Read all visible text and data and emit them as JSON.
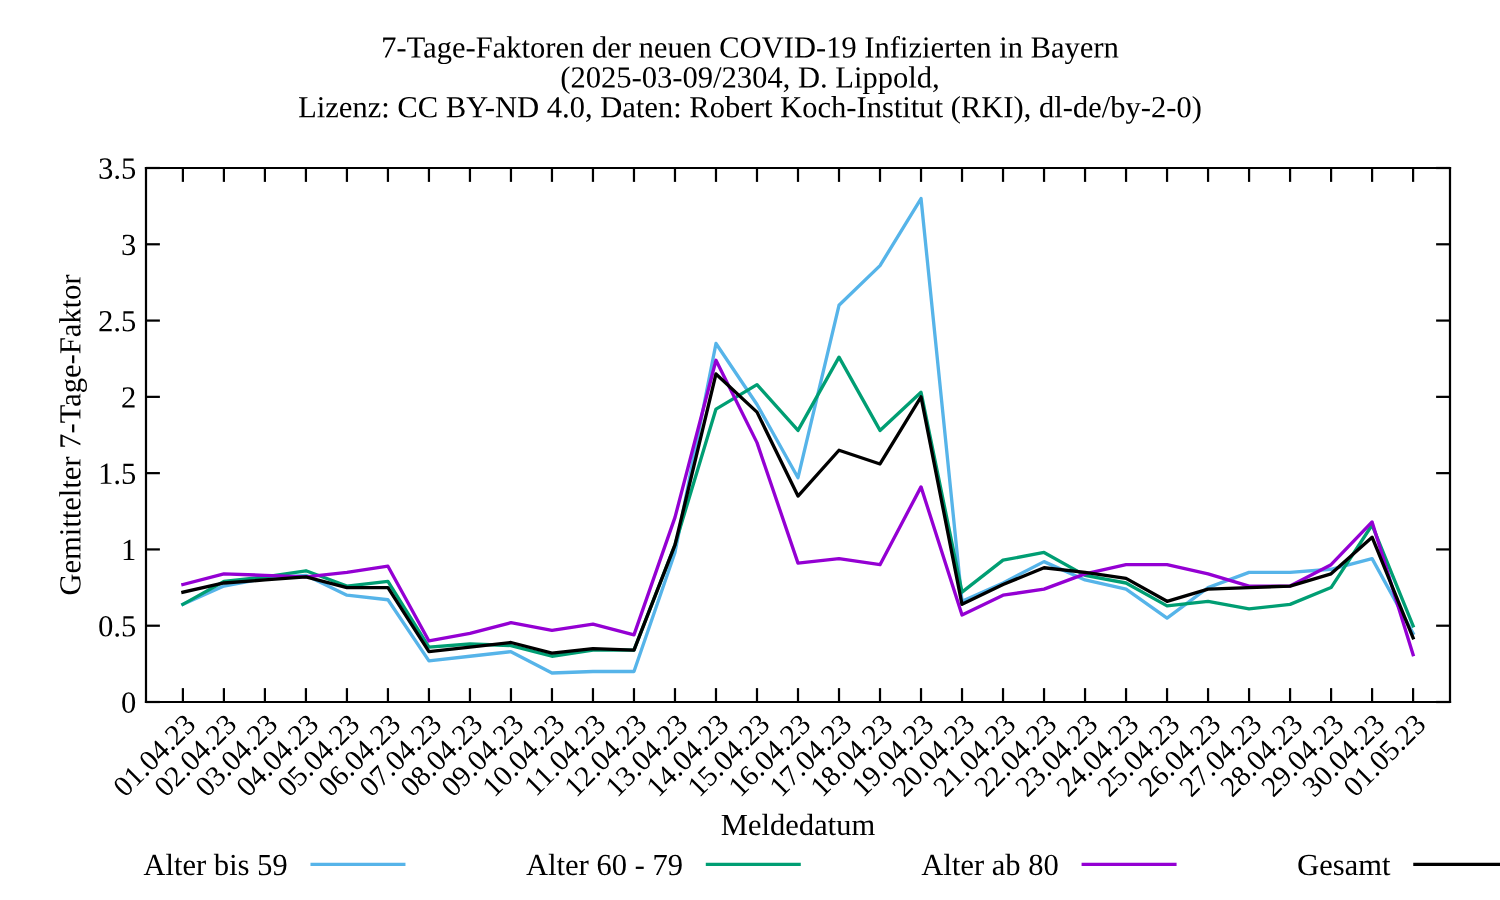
{
  "chart_data": {
    "type": "line",
    "title": "7-Tage-Faktoren der neuen COVID-19 Infizierten in Bayern",
    "subtitle": "(2025-03-09/2304, D. Lippold,\nLizenz: CC BY-ND 4.0, Daten: Robert Koch-Institut (RKI), dl-de/by-2-0)",
    "xlabel": "Meldedatum",
    "ylabel": "Gemittelter 7-Tage-Faktor",
    "categories": [
      "01.04.23",
      "02.04.23",
      "03.04.23",
      "04.04.23",
      "05.04.23",
      "06.04.23",
      "07.04.23",
      "08.04.23",
      "09.04.23",
      "10.04.23",
      "11.04.23",
      "12.04.23",
      "13.04.23",
      "14.04.23",
      "15.04.23",
      "16.04.23",
      "17.04.23",
      "18.04.23",
      "19.04.23",
      "20.04.23",
      "21.04.23",
      "22.04.23",
      "23.04.23",
      "24.04.23",
      "25.04.23",
      "26.04.23",
      "27.04.23",
      "28.04.23",
      "29.04.23",
      "30.04.23",
      "01.05.23"
    ],
    "series": [
      {
        "name": "Alter bis 59",
        "color": "#56b4e9",
        "values": [
          0.64,
          0.76,
          0.81,
          0.83,
          0.7,
          0.67,
          0.27,
          0.3,
          0.33,
          0.19,
          0.2,
          0.2,
          0.98,
          2.35,
          1.95,
          1.47,
          2.6,
          2.86,
          3.3,
          0.66,
          0.78,
          0.92,
          0.8,
          0.74,
          0.55,
          0.75,
          0.85,
          0.85,
          0.87,
          0.94,
          0.45
        ]
      },
      {
        "name": "Alter 60 - 79",
        "color": "#009e73",
        "values": [
          0.64,
          0.79,
          0.82,
          0.86,
          0.76,
          0.79,
          0.36,
          0.38,
          0.37,
          0.3,
          0.34,
          0.34,
          1.03,
          1.92,
          2.08,
          1.78,
          2.26,
          1.78,
          2.03,
          0.72,
          0.93,
          0.98,
          0.83,
          0.78,
          0.63,
          0.66,
          0.61,
          0.64,
          0.75,
          1.16,
          0.5
        ]
      },
      {
        "name": "Alter ab 80",
        "color": "#9400d3",
        "values": [
          0.77,
          0.84,
          0.83,
          0.82,
          0.85,
          0.89,
          0.4,
          0.45,
          0.52,
          0.47,
          0.51,
          0.44,
          1.21,
          2.24,
          1.7,
          0.91,
          0.94,
          0.9,
          1.41,
          0.57,
          0.7,
          0.74,
          0.84,
          0.9,
          0.9,
          0.84,
          0.76,
          0.76,
          0.9,
          1.18,
          0.31
        ]
      },
      {
        "name": "Gesamt",
        "color": "#000000",
        "values": [
          0.72,
          0.78,
          0.8,
          0.82,
          0.75,
          0.75,
          0.33,
          0.36,
          0.39,
          0.32,
          0.35,
          0.34,
          1.03,
          2.15,
          1.9,
          1.35,
          1.65,
          1.56,
          2.0,
          0.64,
          0.77,
          0.88,
          0.85,
          0.81,
          0.66,
          0.74,
          0.75,
          0.76,
          0.84,
          1.08,
          0.42
        ]
      }
    ],
    "ylim": [
      0,
      3.5
    ],
    "yticks": [
      0,
      0.5,
      1,
      1.5,
      2,
      2.5,
      3,
      3.5
    ],
    "grid": false,
    "legend": "bottom",
    "marker": "none",
    "line_style": "solid"
  }
}
